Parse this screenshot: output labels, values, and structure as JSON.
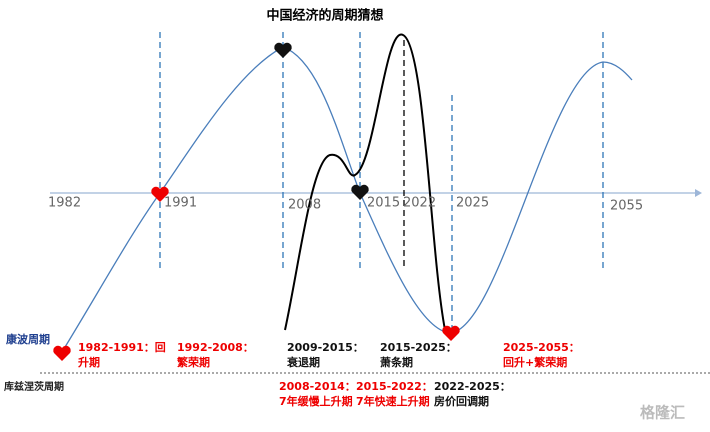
{
  "title": "中国经济的周期猜想",
  "axis_labels": [
    "1982",
    "1991",
    "2008",
    "2015",
    "2022",
    "2025",
    "2055"
  ],
  "cycle_labels": {
    "kondratiev": "康波周期",
    "kuznets": "库兹涅茨周期"
  },
  "kondratiev_phases": [
    {
      "lines": [
        "1982-1991：回",
        "升期"
      ]
    },
    {
      "lines": [
        "1992-2008：",
        "繁荣期"
      ]
    },
    {
      "lines": [
        "2009-2015：",
        "衰退期"
      ]
    },
    {
      "lines": [
        "2015-2025：",
        "萧条期"
      ]
    },
    {
      "lines": [
        "2025-2055：",
        "回升+繁荣期"
      ]
    }
  ],
  "kuznets_phases": [
    {
      "lines": [
        "2008-2014：",
        "7年缓慢上升期"
      ]
    },
    {
      "lines": [
        "2015-2022：",
        "7年快速上升期"
      ]
    },
    {
      "lines": [
        "2022-2025：",
        "房价回调期"
      ]
    }
  ],
  "watermark": "格隆汇"
}
